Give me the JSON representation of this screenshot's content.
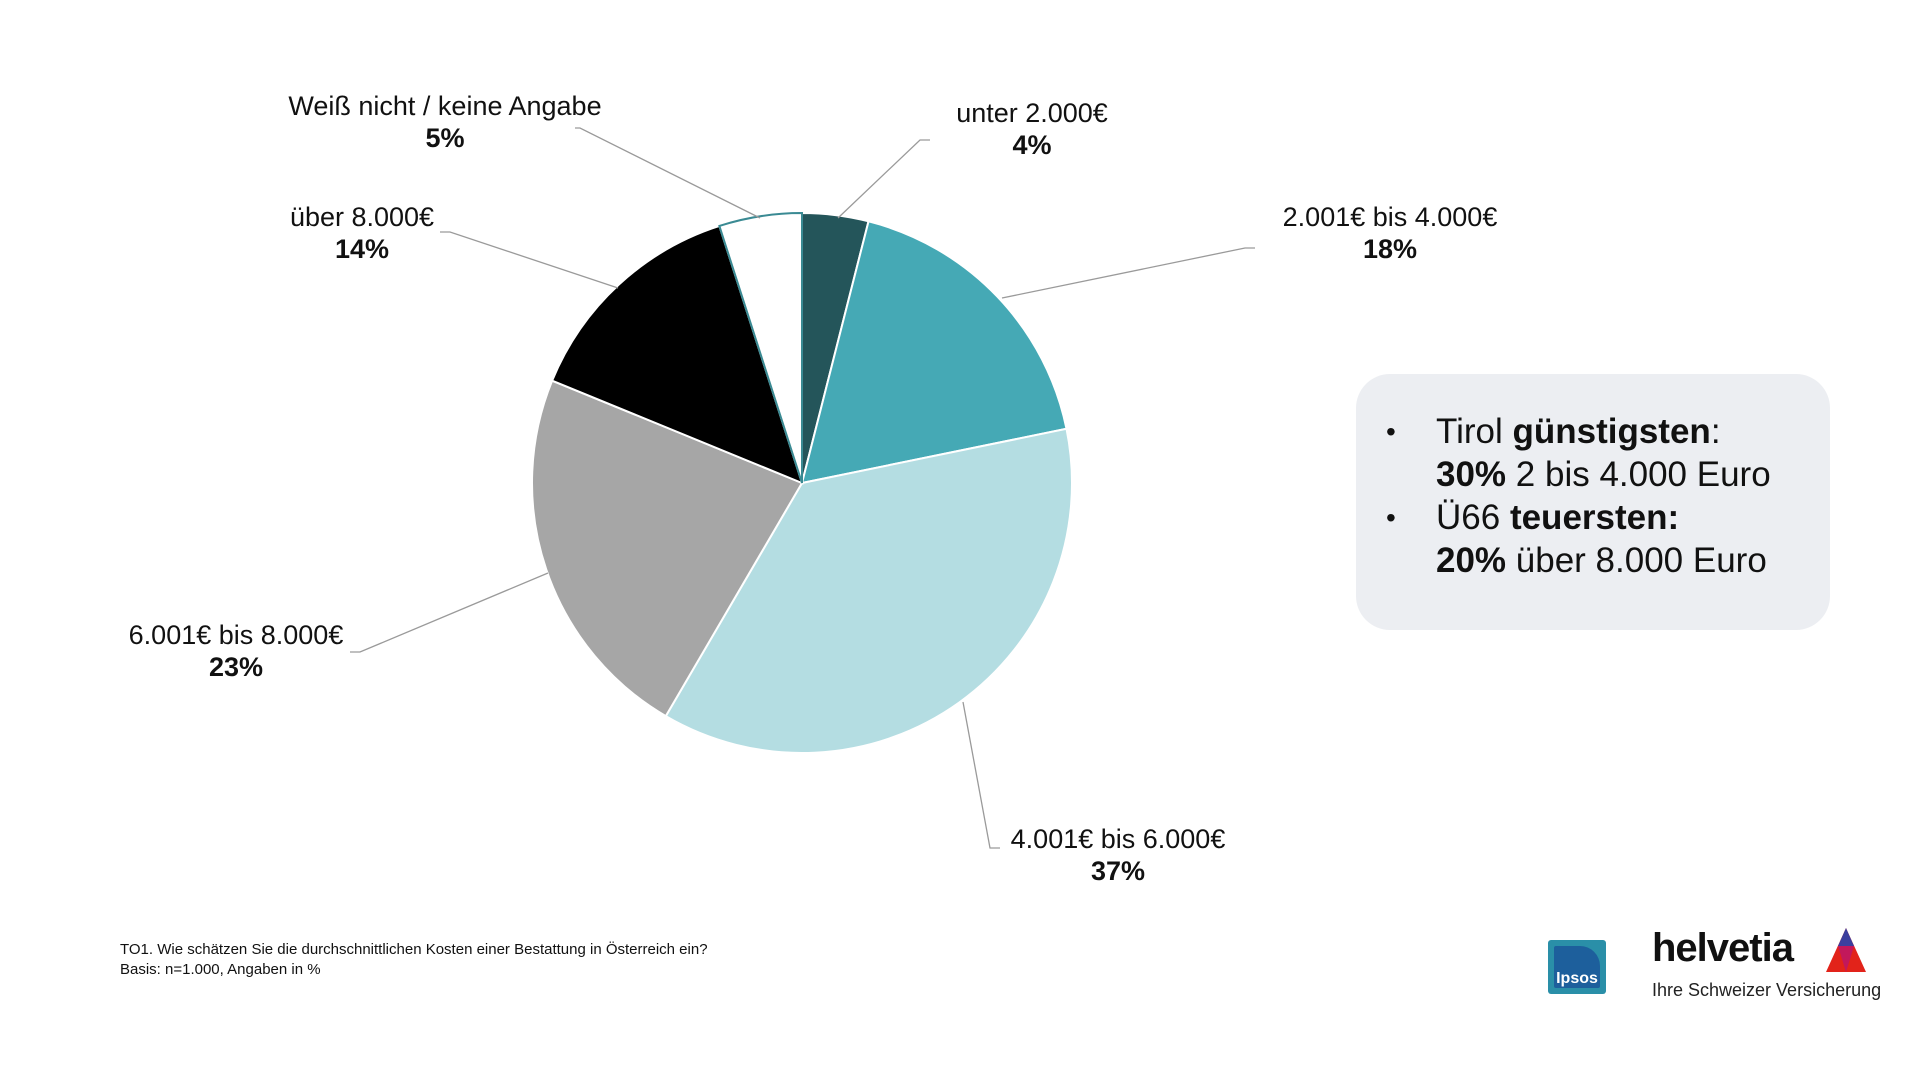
{
  "chart_data": {
    "type": "pie",
    "slices": [
      {
        "label": "unter 2.000€",
        "value": 4,
        "value_label": "4%",
        "color": "#24555a"
      },
      {
        "label": "2.001€ bis 4.000€",
        "value": 18,
        "value_label": "18%",
        "color": "#45a9b5"
      },
      {
        "label": "4.001€ bis 6.000€",
        "value": 37,
        "value_label": "37%",
        "color": "#b4dde2"
      },
      {
        "label": "6.001€ bis 8.000€",
        "value": 23,
        "value_label": "23%",
        "color": "#a6a6a6"
      },
      {
        "label": "über 8.000€",
        "value": 14,
        "value_label": "14%",
        "color": "#000000"
      },
      {
        "label": "Weiß nicht / keine Angabe",
        "value": 5,
        "value_label": "5%",
        "color": "#ffffff"
      }
    ]
  },
  "info_box": {
    "items": [
      {
        "bullet": "•",
        "line1_plain": "Tirol ",
        "line1_bold": "günstigsten",
        "line1_after": ":",
        "line2_bold": "30%",
        "line2_plain": " 2 bis 4.000 Euro"
      },
      {
        "bullet": "•",
        "line1_plain": "Ü66 ",
        "line1_bold": "teuersten:",
        "line1_after": "",
        "line2_bold": "20%",
        "line2_plain": " über 8.000 Euro"
      }
    ]
  },
  "footnote": {
    "question": "TO1. Wie schätzen Sie die durchschnittlichen Kosten einer Bestattung in Österreich ein?",
    "basis": "Basis: n=1.000, Angaben in %"
  },
  "logos": {
    "ipsos": "Ipsos",
    "helvetia_brand": "helvetia",
    "helvetia_tagline": "Ihre Schweizer Versicherung"
  }
}
